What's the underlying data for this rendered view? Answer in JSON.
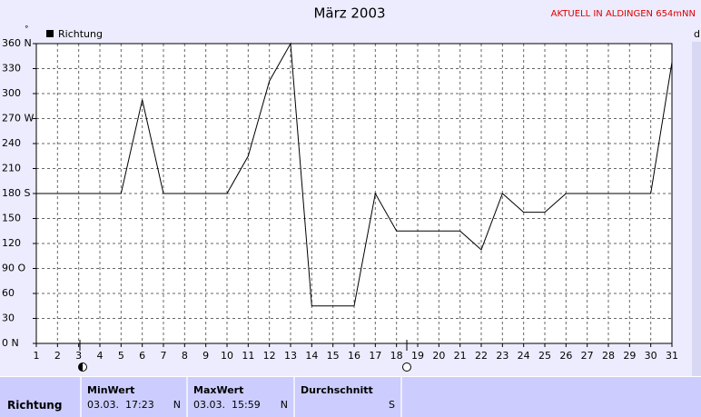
{
  "chart_data": {
    "type": "line",
    "title": "März 2003",
    "note": "AKTUELL IN ALDINGEN 654mNN",
    "unit": "°",
    "corner": "d",
    "x": [
      1,
      2,
      3,
      4,
      5,
      6,
      7,
      8,
      9,
      10,
      11,
      12,
      13,
      14,
      15,
      16,
      17,
      18,
      19,
      20,
      21,
      22,
      23,
      24,
      25,
      26,
      27,
      28,
      29,
      30,
      31
    ],
    "series": [
      {
        "name": "Richtung",
        "color": "#000000",
        "values": [
          180,
          180,
          180,
          180,
          180,
          292.5,
          180,
          180,
          180,
          180,
          225,
          315,
          360,
          45,
          45,
          45,
          180,
          135,
          135,
          135,
          135,
          112.5,
          180,
          157.5,
          157.5,
          180,
          180,
          180,
          180,
          180,
          337.5
        ]
      }
    ],
    "xlim": [
      1,
      31
    ],
    "xticks": [
      1,
      2,
      3,
      4,
      5,
      6,
      7,
      8,
      9,
      10,
      11,
      12,
      13,
      14,
      15,
      16,
      17,
      18,
      19,
      20,
      21,
      22,
      23,
      24,
      25,
      26,
      27,
      28,
      29,
      30,
      31
    ],
    "ylim": [
      0,
      360
    ],
    "yticks": [
      {
        "value": 0,
        "label": "0 N"
      },
      30,
      60,
      {
        "value": 90,
        "label": "90 O"
      },
      120,
      150,
      {
        "value": 180,
        "label": "180 S"
      },
      210,
      240,
      {
        "value": 270,
        "label": "270 W"
      },
      300,
      330,
      {
        "value": 360,
        "label": "360 N"
      }
    ],
    "grid": true,
    "legend": "top-left"
  },
  "stats": {
    "row_label": "Richtung",
    "columns": [
      {
        "header": "MinWert",
        "date": "03.03.",
        "time": "17:23",
        "dir": "N"
      },
      {
        "header": "MaxWert",
        "date": "03.03.",
        "time": "15:59",
        "dir": "N"
      },
      {
        "header": "Durchschnitt",
        "dir": "S"
      }
    ]
  }
}
